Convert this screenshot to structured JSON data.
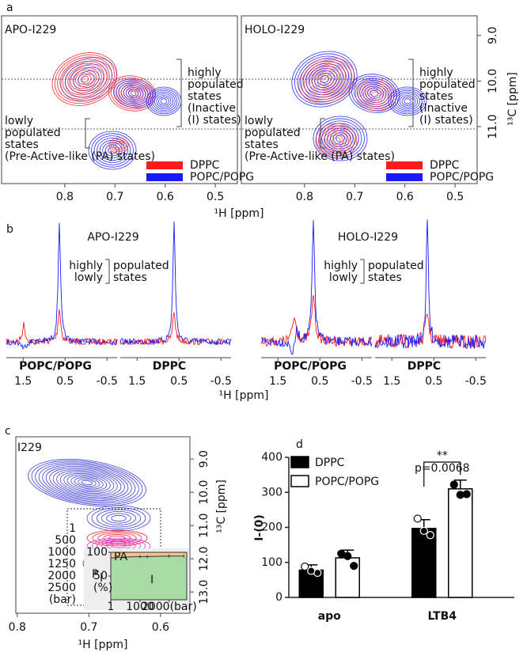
{
  "chart_data": [
    {
      "type": "contour",
      "panel": "a",
      "title": "APO-I229",
      "xlim": [
        0.926,
        0.456
      ],
      "xticks": [
        0.8,
        0.7,
        0.6,
        0.5
      ],
      "series": [
        {
          "name": "DPPC",
          "color": "#ff1a1a"
        },
        {
          "name": "POPC/POPG",
          "color": "#1a1aff"
        }
      ],
      "annotations": [
        [
          "highly",
          "populated",
          "states",
          "(Inactive",
          "(I) states)"
        ],
        [
          "lowly",
          "populated",
          "states",
          "(Pre-Active-like (PA) states)"
        ]
      ],
      "xlabel": "¹H [ppm]"
    },
    {
      "type": "contour",
      "panel": "",
      "title": "HOLO-I229",
      "xlim": [
        0.926,
        0.456
      ],
      "xticks": [
        0.8,
        0.7,
        0.6,
        0.5
      ],
      "ylim": [
        8.57,
        12.25
      ],
      "yticks": [
        {
          "value": 9,
          "label": "9.0"
        },
        {
          "value": 10,
          "label": "10.0"
        },
        {
          "value": 11,
          "label": "11.0"
        }
      ],
      "ylabel": "¹³C [ppm]",
      "series": [
        {
          "name": "DPPC",
          "color": "#ff1a1a"
        },
        {
          "name": "POPC/POPG",
          "color": "#1a1aff"
        }
      ],
      "annotations": [
        [
          "highly",
          "populated",
          "states",
          "(Inactive",
          "(I) states)"
        ],
        [
          "lowly",
          "populated",
          "states",
          "(Pre-Active-like (PA) states)"
        ]
      ]
    },
    {
      "type": "spectrum",
      "panel": "b",
      "title": "APO-I229",
      "subplots": [
        "POPC/POPG",
        "DPPC"
      ],
      "xlim": [
        1.9,
        -0.74
      ],
      "xticks": [
        1.5,
        0.5,
        -0.5
      ],
      "series": [
        {
          "name": "highly",
          "color": "#1a1aff"
        },
        {
          "name": "lowly",
          "color": "#ff1a1a"
        }
      ],
      "legend_text": [
        "populated",
        "states"
      ],
      "xlabel": "¹H [ppm]"
    },
    {
      "type": "spectrum",
      "panel": "",
      "title": "HOLO-I229",
      "subplots": [
        "POPC/POPG",
        "DPPC"
      ],
      "xlim": [
        1.9,
        -0.74
      ],
      "xticks": [
        1.5,
        0.5,
        -0.5
      ],
      "series": [
        {
          "name": "highly",
          "color": "#1a1aff"
        },
        {
          "name": "lowly",
          "color": "#ff1a1a"
        }
      ],
      "legend_text": [
        "populated",
        "states"
      ]
    },
    {
      "type": "contour",
      "panel": "c",
      "title": "I229",
      "xlim": [
        0.802,
        0.559
      ],
      "xticks": [
        0.8,
        0.7,
        0.6
      ],
      "ylim": [
        8.33,
        13.64
      ],
      "yticks": [
        {
          "value": 9,
          "label": "9.0"
        },
        {
          "value": 10,
          "label": "10.0"
        },
        {
          "value": 11,
          "label": "11.0"
        },
        {
          "value": 12,
          "label": "12.0"
        },
        {
          "value": 13,
          "label": "13.0"
        }
      ],
      "xlabel": "¹H [ppm]",
      "ylabel": "¹³C [ppm]",
      "series": [
        {
          "name": "1",
          "color": "#2a2ad0"
        },
        {
          "name": "500",
          "color": "#ee1111"
        },
        {
          "name": "1000",
          "color": "#dd22dd"
        },
        {
          "name": "1250",
          "color": "#222222"
        },
        {
          "name": "2000",
          "color": "#118811"
        },
        {
          "name": "2500",
          "color": "#11cccc"
        }
      ],
      "legend_unit": "(bar)",
      "inset": {
        "ylabel": "P",
        "ylabel_sub": "I",
        "ylabel_unit": "(%)",
        "regions": [
          "PA",
          "I"
        ],
        "xlim": [
          1,
          2600
        ],
        "ylim": [
          0,
          100
        ],
        "yticks": [
          50,
          100
        ],
        "xticks": [
          1,
          1000,
          {
            "value": 2000,
            "label": "2000(bar)"
          }
        ],
        "x": [
          1,
          500,
          1000,
          1250,
          2000,
          2500
        ],
        "values": [
          88,
          90,
          91,
          91,
          92,
          92
        ]
      }
    },
    {
      "type": "bar",
      "panel": "d",
      "categories": [
        "apo",
        "LTB4"
      ],
      "ylim": [
        0,
        400
      ],
      "yticks": [
        0,
        100,
        200,
        300,
        400
      ],
      "ylabel": "I-(0)",
      "series": [
        {
          "name": "DPPC",
          "color": "#000000",
          "values": [
            78,
            197
          ],
          "errors": [
            15,
            25
          ],
          "points": [
            [
              88,
              70,
              76
            ],
            [
              225,
              178,
              190
            ]
          ]
        },
        {
          "name": "POPC/POPG",
          "color": "#ffffff",
          "values": [
            113,
            310
          ],
          "errors": [
            22,
            25
          ],
          "points": [
            [
              125,
              90,
              118
            ],
            [
              322,
              295,
              293
            ]
          ]
        }
      ],
      "annotations": [
        "**",
        "p=0.0068"
      ]
    }
  ]
}
